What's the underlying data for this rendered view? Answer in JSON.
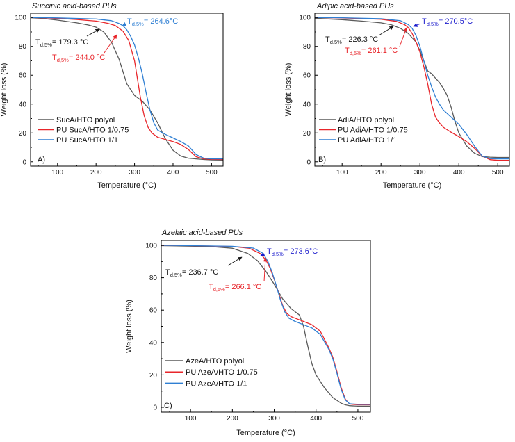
{
  "chart_data": [
    {
      "type": "line",
      "title": "Succinic acid-based PUs",
      "panel_label": "A)",
      "xlabel": "Temperature (°C)",
      "ylabel": "Weight loss (%)",
      "xlim": [
        30,
        530
      ],
      "ylim": [
        -3,
        103
      ],
      "xticks": [
        100,
        200,
        300,
        400,
        500
      ],
      "yticks": [
        0,
        20,
        40,
        60,
        80,
        100
      ],
      "series": [
        {
          "name": "SucA/HTO polyol",
          "color": "#5a5a5a",
          "x": [
            30,
            60,
            100,
            150,
            180,
            200,
            220,
            240,
            260,
            280,
            300,
            320,
            340,
            360,
            380,
            400,
            420,
            440,
            460,
            480,
            500,
            530
          ],
          "y": [
            99.8,
            99.4,
            98.2,
            96.3,
            94.8,
            93.3,
            90,
            83,
            71,
            54,
            46,
            42,
            36,
            27,
            16,
            8,
            4,
            2.5,
            2,
            1.6,
            1.3,
            1.2
          ]
        },
        {
          "name": "PU SucA/HTO 1/0.75",
          "color": "#e8262b",
          "x": [
            30,
            100,
            150,
            200,
            230,
            250,
            270,
            285,
            300,
            315,
            325,
            335,
            345,
            360,
            380,
            400,
            420,
            440,
            460,
            480,
            500,
            530
          ],
          "y": [
            100,
            99.4,
            98.6,
            97.5,
            96,
            94.4,
            90.5,
            84,
            70,
            45,
            32,
            24,
            20,
            17,
            15.5,
            14,
            12,
            8.5,
            3.5,
            2,
            1.7,
            1.6
          ]
        },
        {
          "name": "PU SucA/HTO 1/1",
          "color": "#2f7fd3",
          "x": [
            30,
            100,
            200,
            240,
            260,
            270,
            280,
            290,
            300,
            310,
            320,
            330,
            340,
            350,
            360,
            380,
            400,
            420,
            440,
            460,
            480,
            500,
            530
          ],
          "y": [
            100,
            99.7,
            99,
            97.8,
            95.8,
            94.3,
            91.5,
            87,
            81,
            72,
            61,
            48,
            36,
            27,
            22,
            19,
            16.5,
            14,
            11,
            5,
            2.5,
            2,
            2
          ]
        }
      ],
      "annotations": [
        {
          "series": "SucA/HTO polyol",
          "label_main": "T",
          "label_sub": "d,5%",
          "value": "= 179.3 °C",
          "x": 179.3,
          "y": 95,
          "color": "#1a1a1a"
        },
        {
          "series": "PU SucA/HTO 1/0.75",
          "label_main": "T",
          "label_sub": "d,5%",
          "value": "= 244.0 °C",
          "x": 244.0,
          "y": 95,
          "color": "#e8262b"
        },
        {
          "series": "PU SucA/HTO 1/1",
          "label_main": "T",
          "label_sub": "d,5%",
          "value": "= 264.6°C",
          "x": 264.6,
          "y": 95,
          "color": "#2f7fd3"
        }
      ]
    },
    {
      "type": "line",
      "title": "Adipic acid-based PUs",
      "panel_label": "B)",
      "xlabel": "Temperature (°C)",
      "ylabel": "Weight loss (%)",
      "xlim": [
        30,
        530
      ],
      "ylim": [
        -3,
        103
      ],
      "xticks": [
        100,
        200,
        300,
        400,
        500
      ],
      "yticks": [
        0,
        20,
        40,
        60,
        80,
        100
      ],
      "series": [
        {
          "name": "AdiA/HTO polyol",
          "color": "#5a5a5a",
          "x": [
            30,
            100,
            150,
            200,
            226.3,
            250,
            270,
            290,
            300,
            310,
            320,
            330,
            340,
            350,
            360,
            370,
            380,
            390,
            400,
            420,
            440,
            460,
            480,
            500,
            530
          ],
          "y": [
            99.5,
            98.5,
            97.5,
            96.3,
            95,
            92.5,
            89,
            83,
            77,
            70,
            63,
            61,
            58,
            55,
            51,
            46,
            38,
            28,
            20,
            11,
            6,
            3.6,
            3.2,
            3,
            3
          ]
        },
        {
          "name": "PU AdiA/HTO 1/0.75",
          "color": "#e8262b",
          "x": [
            30,
            100,
            200,
            240,
            261.1,
            270,
            280,
            290,
            300,
            310,
            320,
            330,
            340,
            350,
            360,
            380,
            400,
            420,
            440,
            460,
            480,
            500,
            530
          ],
          "y": [
            100,
            99.7,
            98.8,
            97.3,
            95,
            93,
            89,
            83,
            76,
            66,
            54,
            40,
            31,
            27,
            24,
            20.5,
            17.5,
            14,
            9.5,
            4,
            1.5,
            1,
            1
          ]
        },
        {
          "name": "PU AdiA/HTO 1/1",
          "color": "#2f7fd3",
          "x": [
            30,
            100,
            200,
            250,
            270.5,
            280,
            290,
            300,
            310,
            320,
            330,
            340,
            350,
            360,
            380,
            400,
            420,
            440,
            460,
            480,
            500,
            530
          ],
          "y": [
            100,
            99.8,
            99.2,
            97.8,
            95,
            92.5,
            87.5,
            80,
            70,
            60,
            52,
            45,
            40,
            36,
            31,
            26,
            19,
            11,
            4,
            2.2,
            2,
            2
          ]
        }
      ],
      "annotations": [
        {
          "series": "AdiA/HTO polyol",
          "label_main": "T",
          "label_sub": "d,5%",
          "value": "= 226.3 °C",
          "x": 226.3,
          "y": 95,
          "color": "#1a1a1a"
        },
        {
          "series": "PU AdiA/HTO 1/0.75",
          "label_main": "T",
          "label_sub": "d,5%",
          "value": "= 261.1 °C",
          "x": 261.1,
          "y": 95,
          "color": "#e8262b"
        },
        {
          "series": "PU AdiA/HTO 1/1",
          "label_main": "T",
          "label_sub": "d,5%",
          "value": "= 270.5°C",
          "x": 270.5,
          "y": 95,
          "color": "#1a1acc"
        }
      ]
    },
    {
      "type": "line",
      "title": "Azelaic acid-based PUs",
      "panel_label": "C)",
      "xlabel": "Temperature (°C)",
      "ylabel": "Weight loss (%)",
      "xlim": [
        30,
        530
      ],
      "ylim": [
        -3,
        103
      ],
      "xticks": [
        100,
        200,
        300,
        400,
        500
      ],
      "yticks": [
        0,
        20,
        40,
        60,
        80,
        100
      ],
      "series": [
        {
          "name": "AzeA/HTO polyol",
          "color": "#5a5a5a",
          "x": [
            30,
            100,
            150,
            200,
            236.7,
            260,
            280,
            300,
            320,
            340,
            350,
            360,
            370,
            380,
            390,
            400,
            420,
            440,
            460,
            470,
            480,
            500,
            530
          ],
          "y": [
            99.8,
            99.5,
            99.2,
            98.2,
            95,
            90.5,
            84,
            76,
            67,
            61,
            59,
            57,
            50,
            38,
            27,
            20,
            12,
            6,
            2.5,
            1.5,
            1,
            0.7,
            0.7
          ]
        },
        {
          "name": "PU AzeA/HTO 1/0.75",
          "color": "#e8262b",
          "x": [
            30,
            100,
            200,
            240,
            266.1,
            280,
            290,
            300,
            310,
            320,
            330,
            340,
            350,
            370,
            390,
            410,
            430,
            440,
            450,
            460,
            470,
            480,
            500,
            530
          ],
          "y": [
            100,
            99.8,
            99.3,
            98.2,
            95,
            91,
            86,
            79,
            71,
            63,
            58,
            56,
            55,
            53,
            51,
            47,
            37,
            31,
            22,
            12,
            5,
            2,
            1.5,
            1.5
          ]
        },
        {
          "name": "PU AzeA/HTO 1/1",
          "color": "#2f7fd3",
          "x": [
            30,
            100,
            200,
            250,
            273.6,
            285,
            295,
            305,
            315,
            325,
            335,
            350,
            370,
            390,
            410,
            430,
            440,
            450,
            460,
            470,
            480,
            500,
            530
          ],
          "y": [
            100,
            99.8,
            99.4,
            98.3,
            95,
            90,
            83.5,
            75,
            66,
            59,
            55,
            53,
            51,
            49,
            45,
            36,
            30,
            21,
            11,
            4.5,
            2.2,
            1.8,
            1.8
          ]
        }
      ],
      "annotations": [
        {
          "series": "AzeA/HTO polyol",
          "label_main": "T",
          "label_sub": "d,5%",
          "value": "= 236.7 °C",
          "x": 236.7,
          "y": 95,
          "color": "#1a1a1a"
        },
        {
          "series": "PU AzeA/HTO 1/0.75",
          "label_main": "T",
          "label_sub": "d,5%",
          "value": "= 266.1 °C",
          "x": 266.1,
          "y": 95,
          "color": "#e8262b"
        },
        {
          "series": "PU AzeA/HTO 1/1",
          "label_main": "T",
          "label_sub": "d,5%",
          "value": "= 273.6°C",
          "x": 273.6,
          "y": 95,
          "color": "#1a1acc"
        }
      ]
    }
  ]
}
